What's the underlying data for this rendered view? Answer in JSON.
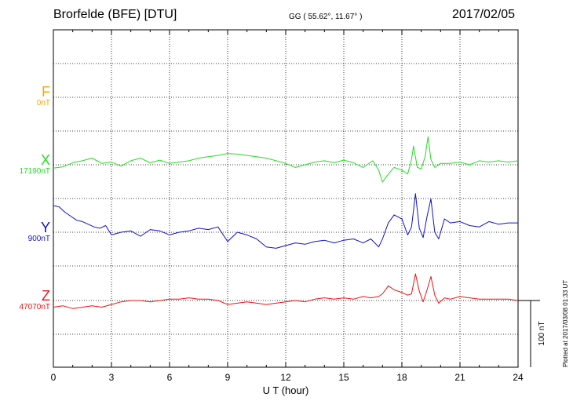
{
  "header": {
    "title": "Brorfelde (BFE)  [DTU]",
    "coords": "GG ( 55.62°,  11.67° )",
    "date": "2017/02/05"
  },
  "plotted_note": "Plotted at 2017/03/08 01:33 UT",
  "chart_data": {
    "type": "line",
    "xlabel": "U T (hour)",
    "xlim": [
      0,
      24
    ],
    "xticks": [
      "0",
      "3",
      "6",
      "9",
      "12",
      "15",
      "18",
      "21",
      "24"
    ],
    "grid": true,
    "scale_bar": {
      "label": "100 nT",
      "value_nT": 100
    },
    "components": [
      {
        "name": "F",
        "baseline": "0nT",
        "color": "#ffa500"
      },
      {
        "name": "X",
        "baseline": "17190nT",
        "color": "#22dd22"
      },
      {
        "name": "Y",
        "baseline": "900nT",
        "color": "#1010cc"
      },
      {
        "name": "Z",
        "baseline": "47070nT",
        "color": "#ee1111"
      }
    ],
    "series": [
      {
        "name": "X",
        "x": [
          0,
          0.5,
          1,
          1.5,
          2,
          2.5,
          3,
          3.5,
          4,
          4.5,
          5,
          5.5,
          6,
          6.5,
          7,
          7.5,
          8,
          8.5,
          9,
          9.5,
          10,
          10.5,
          11,
          11.5,
          12,
          12.5,
          13,
          13.5,
          14,
          14.5,
          15,
          15.5,
          16,
          16.5,
          16.8,
          17,
          17.3,
          17.6,
          18,
          18.3,
          18.5,
          18.6,
          18.8,
          19,
          19.2,
          19.35,
          19.5,
          19.7,
          20,
          20.5,
          21,
          21.5,
          22,
          22.5,
          23,
          23.5,
          24
        ],
        "values": [
          -5,
          -3,
          3,
          6,
          10,
          2,
          4,
          -2,
          6,
          10,
          3,
          7,
          2,
          4,
          6,
          10,
          12,
          14,
          17,
          16,
          14,
          12,
          10,
          6,
          2,
          -4,
          0,
          4,
          6,
          3,
          7,
          3,
          -4,
          6,
          -8,
          -26,
          -14,
          -4,
          -8,
          -14,
          8,
          28,
          -4,
          -6,
          12,
          42,
          8,
          -4,
          2,
          2,
          4,
          0,
          6,
          4,
          6,
          4,
          6
        ]
      },
      {
        "name": "Y",
        "x": [
          0,
          0.3,
          0.6,
          0.9,
          1.2,
          1.5,
          1.8,
          2.1,
          2.4,
          2.7,
          3,
          3.5,
          4,
          4.5,
          5,
          5.5,
          6,
          6.5,
          7,
          7.5,
          8,
          8.5,
          9,
          9.5,
          10,
          10.5,
          11,
          11.5,
          12,
          12.5,
          13,
          13.5,
          14,
          14.5,
          15,
          15.5,
          16,
          16.4,
          16.8,
          17,
          17.3,
          17.6,
          18,
          18.3,
          18.5,
          18.7,
          18.9,
          19.1,
          19.3,
          19.5,
          19.7,
          19.9,
          20.2,
          20.5,
          21,
          21.5,
          22,
          22.5,
          23,
          23.5,
          24
        ],
        "values": [
          40,
          38,
          30,
          24,
          18,
          16,
          12,
          8,
          6,
          10,
          -4,
          0,
          2,
          -6,
          4,
          2,
          -4,
          0,
          2,
          6,
          4,
          8,
          -14,
          0,
          -4,
          -10,
          -22,
          -24,
          -20,
          -16,
          -18,
          -14,
          -12,
          -16,
          -12,
          -10,
          -16,
          -10,
          -22,
          -10,
          14,
          26,
          20,
          -4,
          8,
          58,
          6,
          -8,
          24,
          50,
          0,
          -10,
          20,
          14,
          16,
          10,
          8,
          16,
          12,
          14,
          14
        ]
      },
      {
        "name": "Z",
        "x": [
          0,
          0.5,
          1,
          1.5,
          2,
          2.5,
          3,
          3.5,
          4,
          4.5,
          5,
          5.5,
          6,
          6.5,
          7,
          7.5,
          8,
          8.5,
          9,
          9.5,
          10,
          10.5,
          11,
          11.5,
          12,
          12.5,
          13,
          13.5,
          14,
          14.5,
          15,
          15.5,
          16,
          16.4,
          16.8,
          17,
          17.3,
          17.6,
          18,
          18.3,
          18.5,
          18.7,
          18.9,
          19.1,
          19.3,
          19.5,
          19.7,
          19.9,
          20.2,
          20.5,
          21,
          21.5,
          22,
          22.5,
          23,
          23.5,
          24
        ],
        "values": [
          -10,
          -8,
          -12,
          -10,
          -8,
          -10,
          -6,
          -2,
          0,
          0,
          -2,
          0,
          2,
          2,
          4,
          2,
          2,
          0,
          -6,
          -4,
          -2,
          -4,
          -6,
          -4,
          -2,
          0,
          -2,
          2,
          4,
          2,
          4,
          2,
          6,
          4,
          6,
          10,
          22,
          16,
          12,
          8,
          10,
          40,
          14,
          -2,
          16,
          36,
          8,
          -4,
          4,
          2,
          6,
          4,
          2,
          2,
          2,
          2,
          0
        ]
      }
    ]
  }
}
